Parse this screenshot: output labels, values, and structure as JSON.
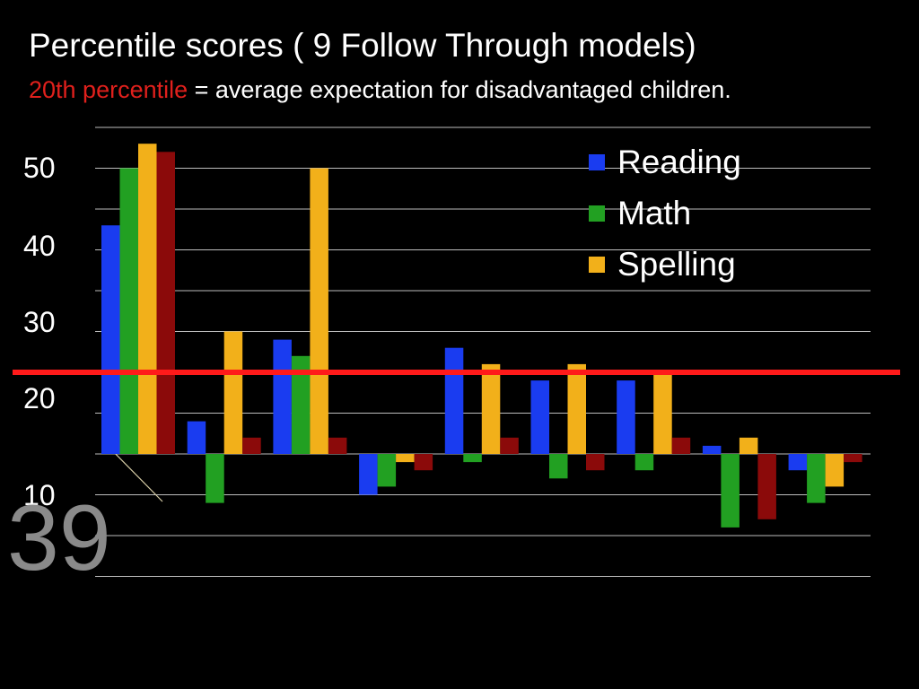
{
  "header": {
    "title": "Percentile scores ( 9 Follow Through models)",
    "subtitle_highlight": "20th percentile",
    "subtitle_rest": " = average expectation for disadvantaged children."
  },
  "slide_number": "39",
  "chart_data": {
    "type": "bar",
    "title": "Percentile scores ( 9 Follow Through models)",
    "xlabel": "",
    "ylabel": "",
    "baseline": 10,
    "reference_line": {
      "value": 20,
      "color": "#ff1a1a"
    },
    "ylim": [
      -5,
      50
    ],
    "y_tick_labels": [
      {
        "value": 50,
        "label": "50"
      },
      {
        "value": 40,
        "label": "40"
      },
      {
        "value": 30,
        "label": "30"
      },
      {
        "value": 20,
        "label": "20"
      },
      {
        "value": 10,
        "label": "10"
      }
    ],
    "grid": true,
    "legend_position": "top-right",
    "legend": [
      "Reading",
      "Math",
      "Spelling"
    ],
    "categories": [
      "",
      "",
      "",
      "",
      "",
      "",
      "",
      "",
      ""
    ],
    "series": [
      {
        "name": "Reading",
        "color": "#1a3cf0",
        "values": [
          38,
          14,
          24,
          5,
          23,
          19,
          19,
          11,
          8
        ]
      },
      {
        "name": "Math",
        "color": "#22a022",
        "values": [
          45,
          4,
          22,
          6,
          9,
          7,
          8,
          1,
          4
        ]
      },
      {
        "name": "Spelling",
        "color": "#f2b01a",
        "values": [
          48,
          25,
          45,
          9,
          21,
          21,
          20,
          12,
          6
        ]
      },
      {
        "color": "#8b0a0a",
        "values": [
          47,
          12,
          12,
          8,
          12,
          8,
          12,
          2,
          9
        ]
      }
    ]
  }
}
